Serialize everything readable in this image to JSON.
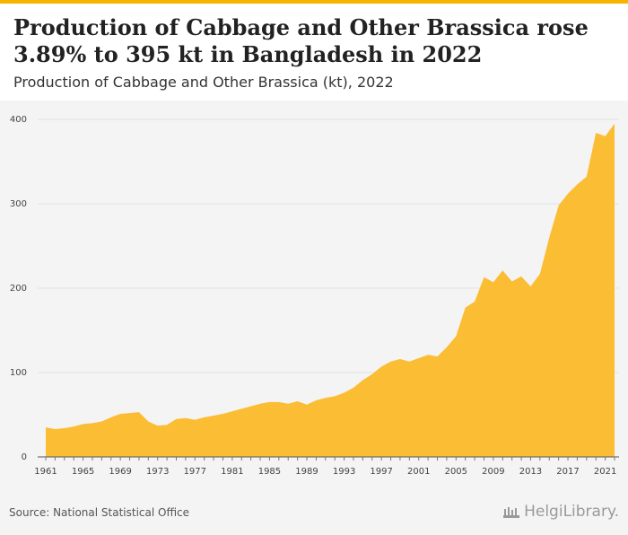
{
  "header": {
    "title": "Production of Cabbage and Other Brassica rose 3.89% to 395 kt in Bangladesh in 2022",
    "subtitle": "Production of Cabbage and Other Brassica (kt), 2022"
  },
  "footer": {
    "source": "Source: National Statistical Office",
    "brand": "HelgiLibrary.",
    "brand_icon": "building-icon"
  },
  "colors": {
    "accent": "#f6b400",
    "area_fill": "#fbbd33",
    "plot_background": "#f4f4f4"
  },
  "chart_data": {
    "type": "area",
    "title": "Production of Cabbage and Other Brassica rose 3.89% to 395 kt in Bangladesh in 2022",
    "subtitle": "Production of Cabbage and Other Brassica (kt), 2022",
    "xlabel": "",
    "ylabel": "",
    "ylim": [
      0,
      400
    ],
    "yticks": [
      0,
      100,
      200,
      300,
      400
    ],
    "xticks": [
      1961,
      1965,
      1969,
      1973,
      1977,
      1981,
      1985,
      1989,
      1993,
      1997,
      2001,
      2005,
      2009,
      2013,
      2017,
      2021
    ],
    "grid": true,
    "legend": "none",
    "x": [
      1961,
      1962,
      1963,
      1964,
      1965,
      1966,
      1967,
      1968,
      1969,
      1970,
      1971,
      1972,
      1973,
      1974,
      1975,
      1976,
      1977,
      1978,
      1979,
      1980,
      1981,
      1982,
      1983,
      1984,
      1985,
      1986,
      1987,
      1988,
      1989,
      1990,
      1991,
      1992,
      1993,
      1994,
      1995,
      1996,
      1997,
      1998,
      1999,
      2000,
      2001,
      2002,
      2003,
      2004,
      2005,
      2006,
      2007,
      2008,
      2009,
      2010,
      2011,
      2012,
      2013,
      2014,
      2015,
      2016,
      2017,
      2018,
      2019,
      2020,
      2021,
      2022
    ],
    "values": [
      35,
      33,
      34,
      36,
      39,
      40,
      42,
      47,
      51,
      52,
      53,
      42,
      37,
      38,
      45,
      46,
      44,
      47,
      49,
      51,
      54,
      57,
      60,
      63,
      65,
      65,
      63,
      66,
      62,
      67,
      70,
      72,
      76,
      82,
      91,
      98,
      107,
      113,
      116,
      113,
      117,
      121,
      119,
      130,
      143,
      177,
      184,
      213,
      207,
      221,
      208,
      214,
      202,
      217,
      260,
      298,
      312,
      323,
      332,
      384,
      380,
      395
    ]
  }
}
